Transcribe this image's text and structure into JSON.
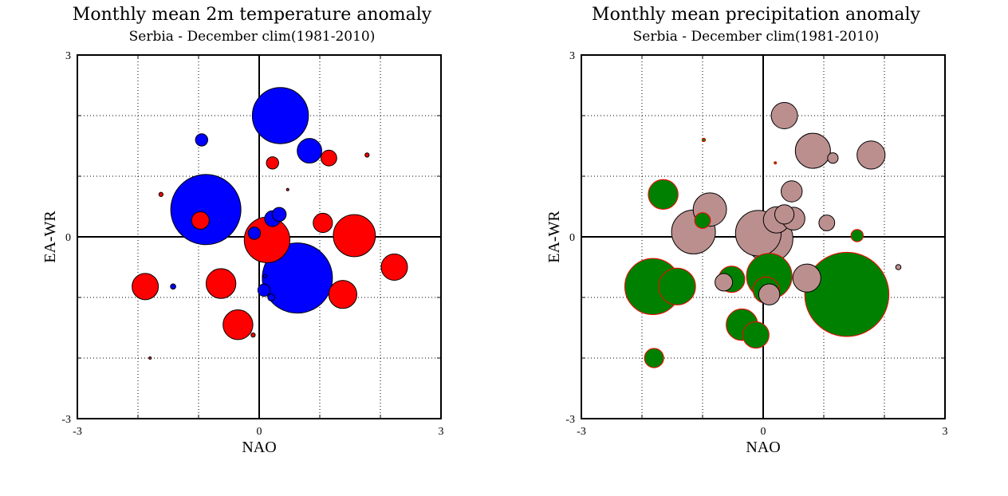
{
  "charts": [
    {
      "id": "left",
      "chart_data": {
        "type": "scatter",
        "title": "Monthly mean 2m temperature anomaly",
        "subtitle": "Serbia - December  clim(1981-2010)",
        "xlabel": "NAO",
        "ylabel": "EA-WR",
        "xlim": [
          -3,
          3
        ],
        "ylim": [
          -3,
          3
        ],
        "xticks": [
          "-3",
          "0",
          "3"
        ],
        "yticks": [
          "-3",
          "0",
          "3"
        ],
        "grid": true,
        "colors": {
          "positive": "#ff0000",
          "negative": "#0000ff",
          "edge": "#000000"
        },
        "points": [
          {
            "x": 0.35,
            "y": 2.0,
            "v": -1.6
          },
          {
            "x": -0.95,
            "y": 1.6,
            "v": -0.35
          },
          {
            "x": 0.83,
            "y": 1.42,
            "v": -0.7
          },
          {
            "x": 1.15,
            "y": 1.3,
            "v": 0.45
          },
          {
            "x": 1.78,
            "y": 1.35,
            "v": 0.12
          },
          {
            "x": 0.22,
            "y": 1.22,
            "v": 0.35
          },
          {
            "x": -1.62,
            "y": 0.7,
            "v": 0.12
          },
          {
            "x": 0.47,
            "y": 0.78,
            "v": 0.05
          },
          {
            "x": -0.88,
            "y": 0.45,
            "v": -2.0
          },
          {
            "x": -0.97,
            "y": 0.27,
            "v": 0.5
          },
          {
            "x": 0.33,
            "y": 0.37,
            "v": -0.4
          },
          {
            "x": 0.22,
            "y": 0.3,
            "v": -0.45
          },
          {
            "x": 1.05,
            "y": 0.23,
            "v": 0.55
          },
          {
            "x": -0.08,
            "y": 0.06,
            "v": -0.35
          },
          {
            "x": 0.13,
            "y": -0.05,
            "v": 1.3
          },
          {
            "x": 1.57,
            "y": 0.02,
            "v": 1.2
          },
          {
            "x": 2.23,
            "y": -0.5,
            "v": 0.75
          },
          {
            "x": 0.63,
            "y": -0.68,
            "v": -2.0
          },
          {
            "x": -1.88,
            "y": -0.82,
            "v": 0.75
          },
          {
            "x": -1.42,
            "y": -0.82,
            "v": -0.15
          },
          {
            "x": -0.63,
            "y": -0.77,
            "v": 0.85
          },
          {
            "x": 0.1,
            "y": -0.65,
            "v": -0.1
          },
          {
            "x": 0.08,
            "y": -0.88,
            "v": -0.35
          },
          {
            "x": 0.2,
            "y": -1.0,
            "v": -0.2
          },
          {
            "x": 1.38,
            "y": -0.95,
            "v": 0.8
          },
          {
            "x": -0.35,
            "y": -1.45,
            "v": 0.85
          },
          {
            "x": -0.1,
            "y": -1.62,
            "v": 0.12
          },
          {
            "x": -1.8,
            "y": -2.0,
            "v": 0.05
          }
        ]
      }
    },
    {
      "id": "right",
      "chart_data": {
        "type": "scatter",
        "title": "Monthly mean precipitation anomaly",
        "subtitle": "Serbia - December  clim(1981-2010)",
        "xlabel": "NAO",
        "ylabel": "EA-WR",
        "xlim": [
          -3,
          3
        ],
        "ylim": [
          -3,
          3
        ],
        "xticks": [
          "-3",
          "0",
          "3"
        ],
        "yticks": [
          "-3",
          "0",
          "3"
        ],
        "grid": true,
        "colors": {
          "positive": "#008000",
          "negative": "#bc8f8f",
          "edge_positive": "#ff0000",
          "edge_negative": "#000000"
        },
        "points": [
          {
            "x": 0.35,
            "y": 2.0,
            "v": -0.75
          },
          {
            "x": -0.98,
            "y": 1.6,
            "v": 0.1
          },
          {
            "x": 0.82,
            "y": 1.42,
            "v": -1.0
          },
          {
            "x": 1.15,
            "y": 1.3,
            "v": -0.3
          },
          {
            "x": 1.78,
            "y": 1.35,
            "v": -0.8
          },
          {
            "x": 0.2,
            "y": 1.22,
            "v": 0.05
          },
          {
            "x": -1.65,
            "y": 0.7,
            "v": 0.85
          },
          {
            "x": 0.47,
            "y": 0.75,
            "v": -0.6
          },
          {
            "x": -0.88,
            "y": 0.45,
            "v": -0.95
          },
          {
            "x": -1.0,
            "y": 0.27,
            "v": 0.45
          },
          {
            "x": 0.35,
            "y": 0.37,
            "v": -0.55
          },
          {
            "x": 0.22,
            "y": 0.28,
            "v": -0.75
          },
          {
            "x": 0.5,
            "y": 0.3,
            "v": -0.65
          },
          {
            "x": 1.05,
            "y": 0.23,
            "v": -0.45
          },
          {
            "x": -1.15,
            "y": 0.08,
            "v": -1.25
          },
          {
            "x": -0.08,
            "y": 0.06,
            "v": -1.3
          },
          {
            "x": 0.1,
            "y": -0.03,
            "v": -1.35
          },
          {
            "x": 1.55,
            "y": 0.02,
            "v": 0.35
          },
          {
            "x": 2.23,
            "y": -0.5,
            "v": -0.15
          },
          {
            "x": 0.1,
            "y": -0.65,
            "v": 1.3
          },
          {
            "x": 0.72,
            "y": -0.68,
            "v": -0.8
          },
          {
            "x": -0.65,
            "y": -0.75,
            "v": -0.5
          },
          {
            "x": -0.52,
            "y": -0.7,
            "v": 0.75
          },
          {
            "x": -1.82,
            "y": -0.82,
            "v": 1.6
          },
          {
            "x": -1.42,
            "y": -0.82,
            "v": 1.05
          },
          {
            "x": 0.1,
            "y": -0.95,
            "v": -0.6
          },
          {
            "x": 0.05,
            "y": -0.88,
            "v": 0.75
          },
          {
            "x": 1.38,
            "y": -0.95,
            "v": 2.4
          },
          {
            "x": -0.35,
            "y": -1.45,
            "v": 0.9
          },
          {
            "x": -0.12,
            "y": -1.62,
            "v": 0.75
          },
          {
            "x": -1.8,
            "y": -2.0,
            "v": 0.55
          }
        ]
      }
    }
  ]
}
